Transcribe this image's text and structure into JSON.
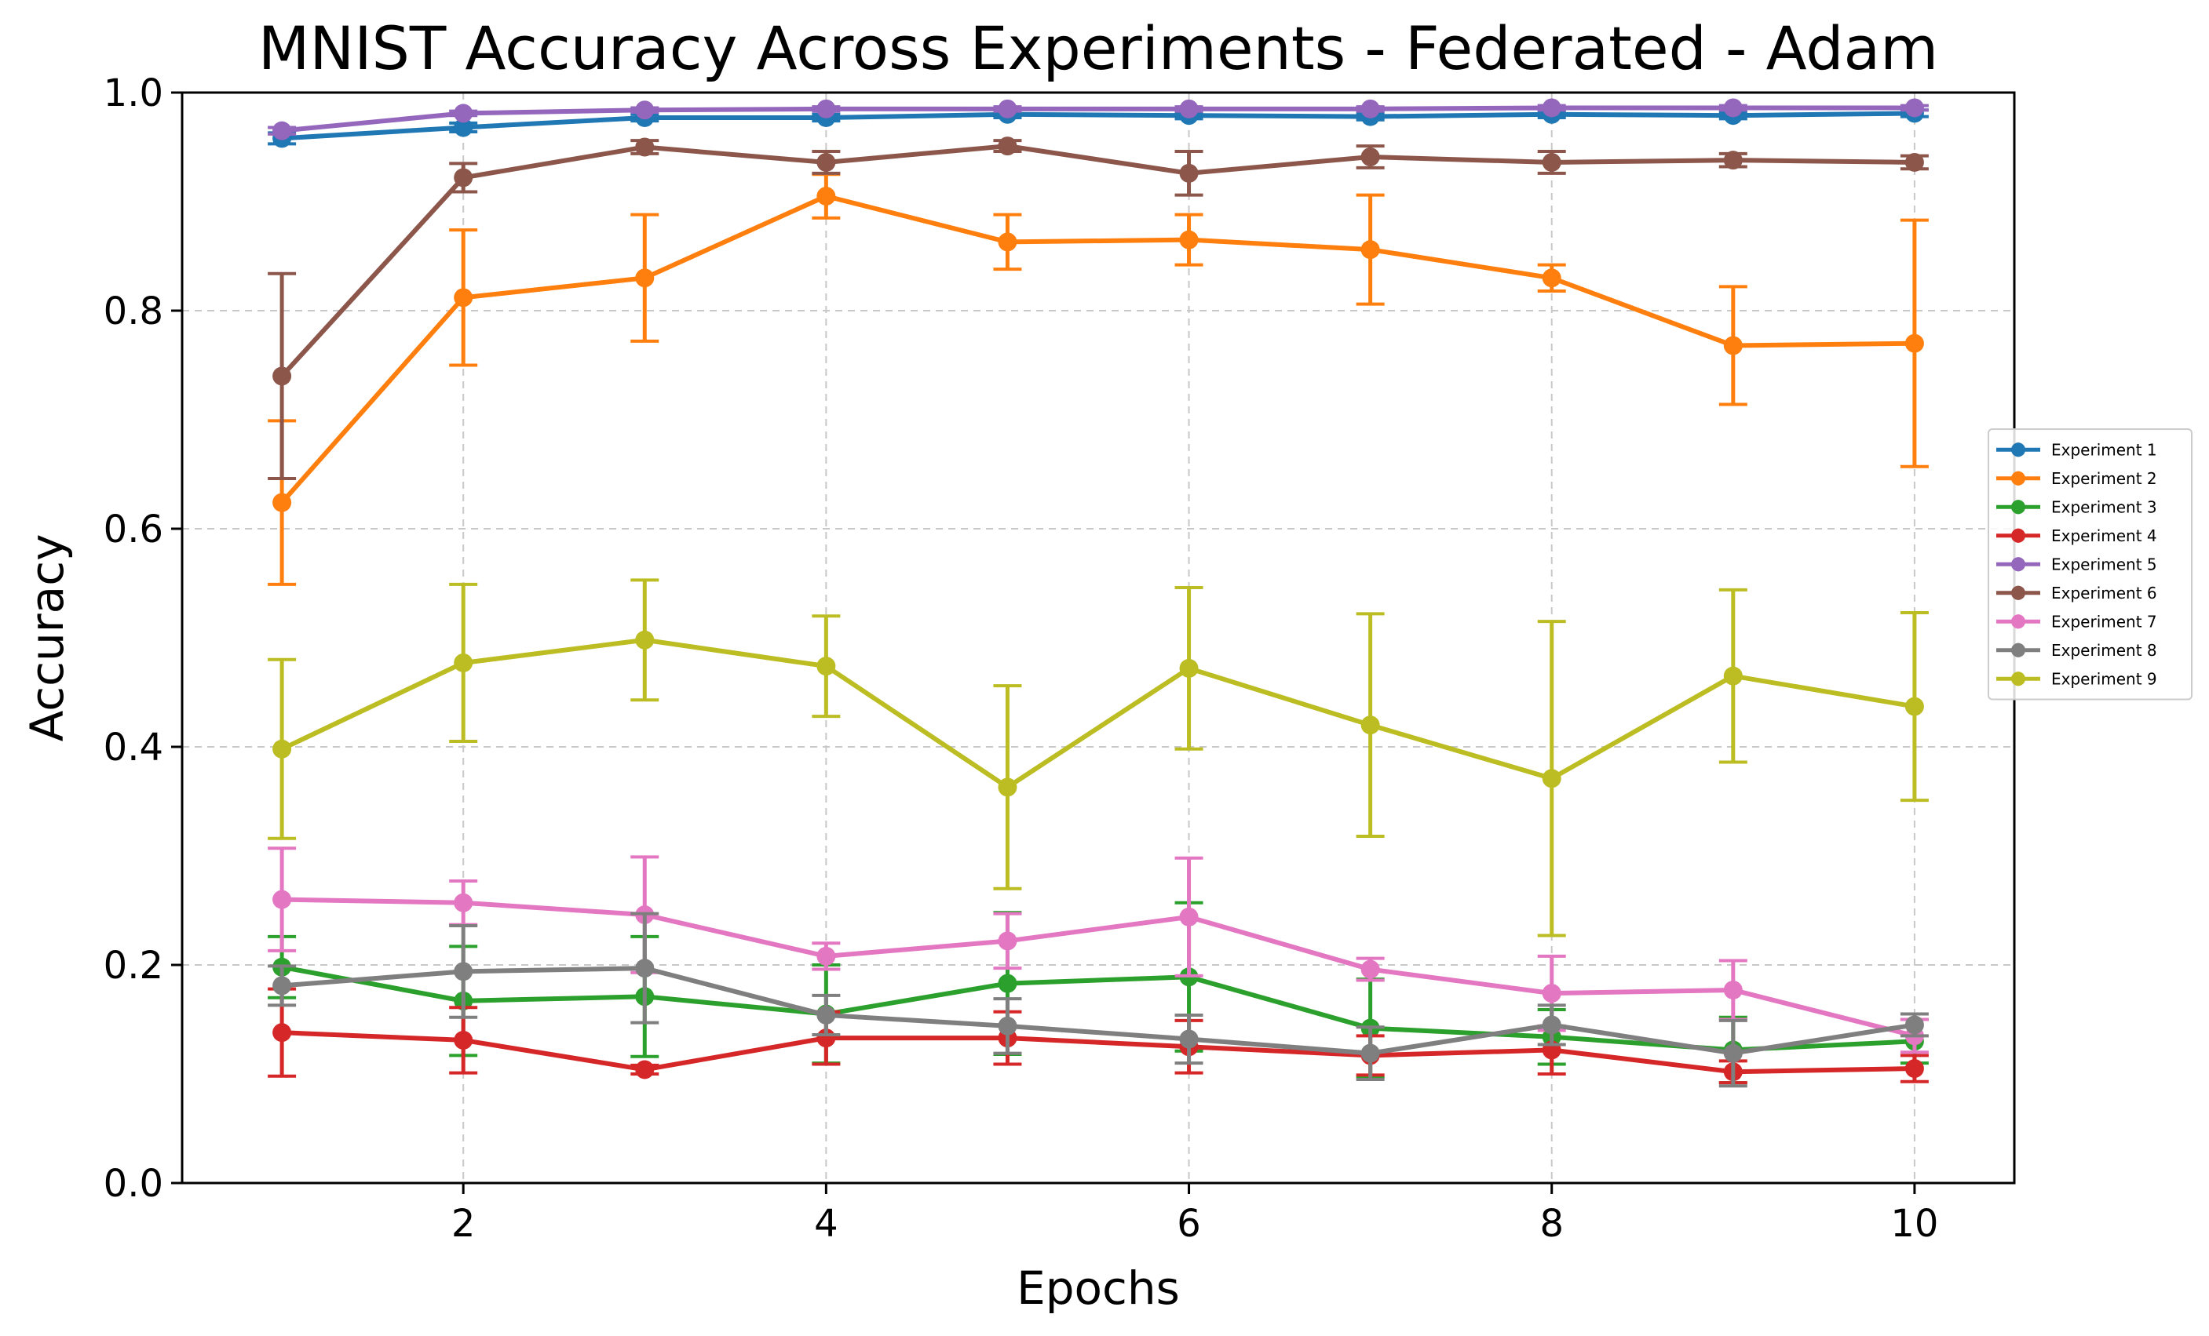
{
  "chart_data": {
    "type": "line",
    "title": "MNIST Accuracy Across Experiments - Federated - Adam",
    "xlabel": "Epochs",
    "ylabel": "Accuracy",
    "xlim": [
      0.45,
      10.55
    ],
    "ylim": [
      0.0,
      1.0
    ],
    "x": [
      1,
      2,
      3,
      4,
      5,
      6,
      7,
      8,
      9,
      10
    ],
    "xticks": [
      2,
      4,
      6,
      8,
      10
    ],
    "xtick_labels": [
      "2",
      "4",
      "6",
      "8",
      "10"
    ],
    "yticks": [
      0.0,
      0.2,
      0.4,
      0.6,
      0.8,
      1.0
    ],
    "ytick_labels": [
      "0.0",
      "0.2",
      "0.4",
      "0.6",
      "0.8",
      "1.0"
    ],
    "grid": true,
    "legend_position": "right",
    "series": [
      {
        "name": "Experiment 1",
        "color": "#1f77b4",
        "values": [
          0.958,
          0.968,
          0.977,
          0.977,
          0.98,
          0.979,
          0.978,
          0.98,
          0.979,
          0.981
        ],
        "errors": [
          0.005,
          0.004,
          0.003,
          0.003,
          0.003,
          0.003,
          0.003,
          0.003,
          0.003,
          0.003
        ]
      },
      {
        "name": "Experiment 2",
        "color": "#ff7f0e",
        "values": [
          0.624,
          0.812,
          0.83,
          0.905,
          0.863,
          0.865,
          0.856,
          0.83,
          0.768,
          0.77
        ],
        "errors": [
          0.075,
          0.062,
          0.058,
          0.02,
          0.025,
          0.023,
          0.05,
          0.012,
          0.054,
          0.113
        ]
      },
      {
        "name": "Experiment 3",
        "color": "#2ca02c",
        "values": [
          0.198,
          0.167,
          0.171,
          0.155,
          0.183,
          0.189,
          0.142,
          0.134,
          0.122,
          0.13
        ],
        "errors": [
          0.028,
          0.05,
          0.055,
          0.045,
          0.065,
          0.068,
          0.045,
          0.025,
          0.03,
          0.02
        ]
      },
      {
        "name": "Experiment 4",
        "color": "#d62728",
        "values": [
          0.138,
          0.131,
          0.104,
          0.133,
          0.133,
          0.125,
          0.117,
          0.122,
          0.102,
          0.105
        ],
        "errors": [
          0.04,
          0.03,
          0.004,
          0.024,
          0.024,
          0.024,
          0.018,
          0.022,
          0.01,
          0.012
        ]
      },
      {
        "name": "Experiment 5",
        "color": "#9467bd",
        "values": [
          0.965,
          0.981,
          0.984,
          0.985,
          0.985,
          0.985,
          0.985,
          0.986,
          0.986,
          0.986
        ],
        "errors": [
          0.003,
          0.002,
          0.002,
          0.002,
          0.002,
          0.002,
          0.002,
          0.002,
          0.002,
          0.002
        ]
      },
      {
        "name": "Experiment 6",
        "color": "#8c564b",
        "values": [
          0.74,
          0.922,
          0.95,
          0.936,
          0.951,
          0.926,
          0.941,
          0.936,
          0.938,
          0.936
        ],
        "errors": [
          0.094,
          0.013,
          0.006,
          0.01,
          0.005,
          0.02,
          0.01,
          0.01,
          0.006,
          0.006
        ]
      },
      {
        "name": "Experiment 7",
        "color": "#e377c2",
        "values": [
          0.26,
          0.257,
          0.246,
          0.208,
          0.222,
          0.244,
          0.196,
          0.174,
          0.177,
          0.135
        ],
        "errors": [
          0.047,
          0.02,
          0.053,
          0.012,
          0.025,
          0.054,
          0.01,
          0.034,
          0.027,
          0.015
        ]
      },
      {
        "name": "Experiment 8",
        "color": "#7f7f7f",
        "values": [
          0.181,
          0.194,
          0.197,
          0.154,
          0.144,
          0.132,
          0.119,
          0.145,
          0.119,
          0.145
        ],
        "errors": [
          0.018,
          0.042,
          0.05,
          0.018,
          0.025,
          0.022,
          0.024,
          0.018,
          0.03,
          0.01
        ]
      },
      {
        "name": "Experiment 9",
        "color": "#bcbd22",
        "values": [
          0.398,
          0.477,
          0.498,
          0.474,
          0.363,
          0.472,
          0.42,
          0.371,
          0.465,
          0.437
        ],
        "errors": [
          0.082,
          0.072,
          0.055,
          0.046,
          0.093,
          0.074,
          0.102,
          0.144,
          0.079,
          0.086
        ]
      }
    ]
  }
}
